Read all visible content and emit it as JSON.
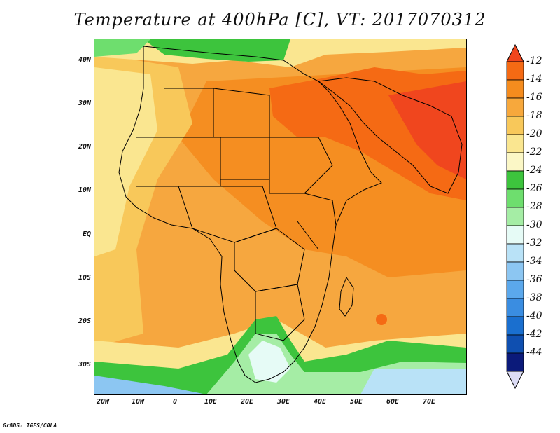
{
  "title": "Temperature at 400hPa [C], VT: 2017070312",
  "footer": "GrADS: IGES/COLA",
  "lat_labels": [
    "40N",
    "30N",
    "20N",
    "10N",
    "EQ",
    "10S",
    "20S",
    "30S"
  ],
  "lon_labels": [
    "20W",
    "10W",
    "0",
    "10E",
    "20E",
    "30E",
    "40E",
    "50E",
    "60E",
    "70E"
  ],
  "colorbar": {
    "labels": [
      "-12",
      "-14",
      "-16",
      "-18",
      "-20",
      "-22",
      "-24",
      "-26",
      "-28",
      "-30",
      "-32",
      "-34",
      "-36",
      "-38",
      "-40",
      "-42",
      "-44"
    ],
    "colors": [
      "#f0461e",
      "#f56a14",
      "#f58c1e",
      "#f7a83c",
      "#f8c85a",
      "#fae690",
      "#fbf7c6",
      "#3dc43d",
      "#6ede6e",
      "#a5eda5",
      "#e6fbf6",
      "#b9e2f7",
      "#8cc6f2",
      "#5ba8ec",
      "#3a8de1",
      "#1a6fcf",
      "#0f4fb0",
      "#0b1a7a",
      "#dcdcf5"
    ]
  },
  "map": {
    "region": "Africa and Middle East",
    "field": "Temperature at 400hPa",
    "lon_range": [
      -20,
      78
    ],
    "lat_range": [
      -36,
      44
    ]
  },
  "colors": {
    "border": "#000000",
    "text": "#111111"
  }
}
